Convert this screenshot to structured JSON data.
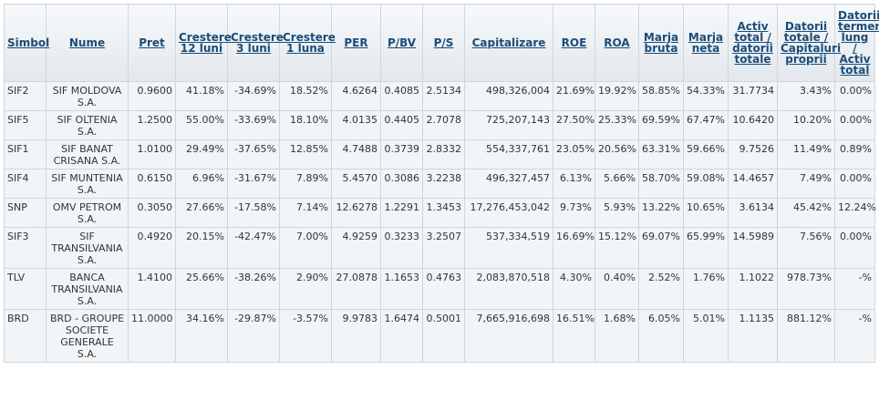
{
  "columns": [
    "Simbol",
    "Nume",
    "Pret",
    "Crestere 12 luni",
    "Crestere 3 luni",
    "Crestere 1 luna",
    "PER",
    "P/BV",
    "P/S",
    "Capitalizare",
    "ROE",
    "ROA",
    "Marja bruta",
    "Marja neta",
    "Activ total / datorii totale",
    "Datorii totale / Capitaluri proprii",
    "Datorii termen lung / Activ total"
  ],
  "rows": [
    {
      "simbol": "SIF2",
      "nume": "SIF MOLDOVA S.A.",
      "pret": "0.9600",
      "c12": "41.18%",
      "c3": "-34.69%",
      "c1": "18.52%",
      "per": "4.6264",
      "pbv": "0.4085",
      "ps": "2.5134",
      "cap": "498,326,004",
      "roe": "21.69%",
      "roa": "19.92%",
      "mb": "58.85%",
      "mn": "54.33%",
      "atdt": "31.7734",
      "dtcp": "3.43%",
      "dtlat": "0.00%"
    },
    {
      "simbol": "SIF5",
      "nume": "SIF OLTENIA S.A.",
      "pret": "1.2500",
      "c12": "55.00%",
      "c3": "-33.69%",
      "c1": "18.10%",
      "per": "4.0135",
      "pbv": "0.4405",
      "ps": "2.7078",
      "cap": "725,207,143",
      "roe": "27.50%",
      "roa": "25.33%",
      "mb": "69.59%",
      "mn": "67.47%",
      "atdt": "10.6420",
      "dtcp": "10.20%",
      "dtlat": "0.00%"
    },
    {
      "simbol": "SIF1",
      "nume": "SIF BANAT CRISANA S.A.",
      "pret": "1.0100",
      "c12": "29.49%",
      "c3": "-37.65%",
      "c1": "12.85%",
      "per": "4.7488",
      "pbv": "0.3739",
      "ps": "2.8332",
      "cap": "554,337,761",
      "roe": "23.05%",
      "roa": "20.56%",
      "mb": "63.31%",
      "mn": "59.66%",
      "atdt": "9.7526",
      "dtcp": "11.49%",
      "dtlat": "0.89%"
    },
    {
      "simbol": "SIF4",
      "nume": "SIF MUNTENIA S.A.",
      "pret": "0.6150",
      "c12": "6.96%",
      "c3": "-31.67%",
      "c1": "7.89%",
      "per": "5.4570",
      "pbv": "0.3086",
      "ps": "3.2238",
      "cap": "496,327,457",
      "roe": "6.13%",
      "roa": "5.66%",
      "mb": "58.70%",
      "mn": "59.08%",
      "atdt": "14.4657",
      "dtcp": "7.49%",
      "dtlat": "0.00%"
    },
    {
      "simbol": "SNP",
      "nume": "OMV PETROM S.A.",
      "pret": "0.3050",
      "c12": "27.66%",
      "c3": "-17.58%",
      "c1": "7.14%",
      "per": "12.6278",
      "pbv": "1.2291",
      "ps": "1.3453",
      "cap": "17,276,453,042",
      "roe": "9.73%",
      "roa": "5.93%",
      "mb": "13.22%",
      "mn": "10.65%",
      "atdt": "3.6134",
      "dtcp": "45.42%",
      "dtlat": "12.24%"
    },
    {
      "simbol": "SIF3",
      "nume": "SIF TRANSILVANIA S.A.",
      "pret": "0.4920",
      "c12": "20.15%",
      "c3": "-42.47%",
      "c1": "7.00%",
      "per": "4.9259",
      "pbv": "0.3233",
      "ps": "3.2507",
      "cap": "537,334,519",
      "roe": "16.69%",
      "roa": "15.12%",
      "mb": "69.07%",
      "mn": "65.99%",
      "atdt": "14.5989",
      "dtcp": "7.56%",
      "dtlat": "0.00%"
    },
    {
      "simbol": "TLV",
      "nume": "BANCA TRANSILVANIA S.A.",
      "pret": "1.4100",
      "c12": "25.66%",
      "c3": "-38.26%",
      "c1": "2.90%",
      "per": "27.0878",
      "pbv": "1.1653",
      "ps": "0.4763",
      "cap": "2,083,870,518",
      "roe": "4.30%",
      "roa": "0.40%",
      "mb": "2.52%",
      "mn": "1.76%",
      "atdt": "1.1022",
      "dtcp": "978.73%",
      "dtlat": "-%"
    },
    {
      "simbol": "BRD",
      "nume": "BRD - GROUPE SOCIETE GENERALE S.A.",
      "pret": "11.0000",
      "c12": "34.16%",
      "c3": "-29.87%",
      "c1": "-3.57%",
      "per": "9.9783",
      "pbv": "1.6474",
      "ps": "0.5001",
      "cap": "7,665,916,698",
      "roe": "16.51%",
      "roa": "1.68%",
      "mb": "6.05%",
      "mn": "5.01%",
      "atdt": "1.1135",
      "dtcp": "881.12%",
      "dtlat": "-%"
    }
  ]
}
